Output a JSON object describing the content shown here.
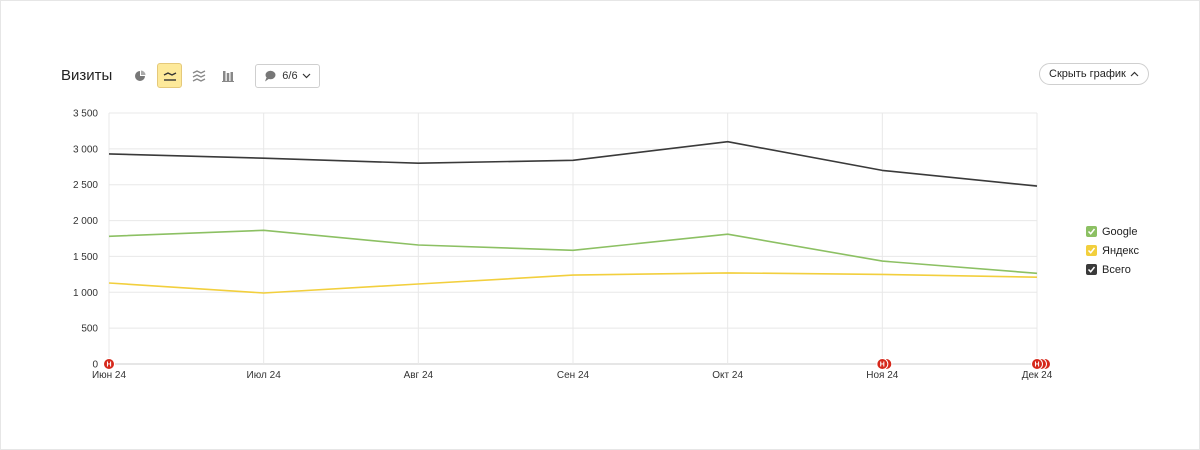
{
  "header": {
    "title": "Визиты",
    "goals_label": "6/6",
    "hide_chart_label": "Скрыть график"
  },
  "colors": {
    "google": "#8cc063",
    "yandex": "#f2cf3d",
    "total": "#3a3a3a",
    "grid": "#e8e8e8",
    "axis": "#cccccc",
    "marker": "#d5281b"
  },
  "icons": {
    "pie": "pie-chart-icon",
    "line": "line-chart-icon",
    "area": "stacked-area-icon",
    "bars": "bar-chart-icon",
    "goals": "speech-bubble-icon",
    "goals_chevron": "chevron-down-icon",
    "hide": "chevron-up-icon",
    "legend_check": "checkmark-icon"
  },
  "chart_data": {
    "type": "line",
    "categories": [
      "Июн 24",
      "Июл 24",
      "Авг 24",
      "Сен 24",
      "Окт 24",
      "Ноя 24",
      "Дек 24"
    ],
    "series": [
      {
        "name": "Google",
        "color": "#8cc063",
        "values": [
          1780,
          1865,
          1660,
          1585,
          1810,
          1435,
          1265
        ]
      },
      {
        "name": "Яндекс",
        "color": "#f2cf3d",
        "values": [
          1130,
          990,
          1115,
          1240,
          1270,
          1250,
          1210
        ]
      },
      {
        "name": "Всего",
        "color": "#3a3a3a",
        "values": [
          2930,
          2870,
          2800,
          2840,
          3100,
          2700,
          2480
        ]
      }
    ],
    "ylim": [
      0,
      3500
    ],
    "yticks": [
      0,
      500,
      1000,
      1500,
      2000,
      2500,
      3000,
      3500
    ],
    "ytick_labels": [
      "0",
      "500",
      "1 000",
      "1 500",
      "2 000",
      "2 500",
      "3 000",
      "3 500"
    ],
    "annotations": [
      {
        "category": "Июн 24",
        "count": 1,
        "label": "Н"
      },
      {
        "category": "Ноя 24",
        "count": 2,
        "label": "Н"
      },
      {
        "category": "Дек 24",
        "count": 3,
        "label": "Н"
      }
    ],
    "legend_position": "right",
    "grid": true
  }
}
